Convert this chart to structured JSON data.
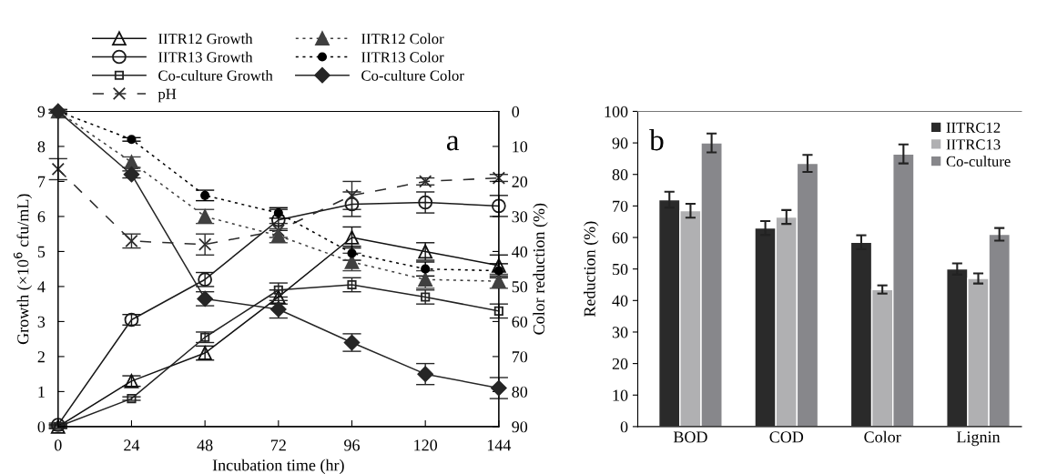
{
  "chart_data": [
    {
      "type": "line",
      "xlabel": "Incubation time (hr)",
      "ylabel": "Growth (×10$^{6}$ cfu/mL)",
      "y2label": "Color reduction (%)",
      "annotations": [
        "a"
      ],
      "x": [
        0,
        24,
        48,
        72,
        96,
        120,
        144
      ],
      "xlim": [
        0,
        144
      ],
      "xticks": [
        0,
        24,
        48,
        72,
        96,
        120,
        144
      ],
      "ylim": [
        0,
        9
      ],
      "yticks": [
        0,
        1,
        2,
        3,
        4,
        5,
        6,
        7,
        8,
        9
      ],
      "y2lim": [
        90,
        0
      ],
      "y2ticks": [
        0,
        10,
        20,
        30,
        40,
        50,
        60,
        70,
        80,
        90
      ],
      "legend": "top",
      "grid": false,
      "series": [
        {
          "name": "IITR12 Growth",
          "color": "#111111",
          "marker": "triangle",
          "line_style": "solid",
          "values": [
            0,
            1.3,
            2.1,
            3.7,
            5.4,
            5.0,
            4.6
          ],
          "errors": [
            0.05,
            0.15,
            0.2,
            0.2,
            0.3,
            0.25,
            0.3
          ]
        },
        {
          "name": "IITR13 Growth",
          "color": "#1a1a1a",
          "marker": "circle",
          "line_style": "solid",
          "values": [
            0.05,
            3.05,
            4.2,
            5.9,
            6.35,
            6.4,
            6.3
          ],
          "errors": [
            0.05,
            0.15,
            0.2,
            0.3,
            0.35,
            0.3,
            0.3
          ]
        },
        {
          "name": "Co-culture Growth",
          "color": "#222222",
          "marker": "square",
          "line_style": "solid",
          "values": [
            0,
            0.8,
            2.55,
            3.9,
            4.05,
            3.7,
            3.3
          ],
          "errors": [
            0.05,
            0.05,
            0.15,
            0.2,
            0.2,
            0.2,
            0.2
          ]
        },
        {
          "name": "pH",
          "color": "#2b2b2b",
          "marker": "cross",
          "line_style": "dashed",
          "values": [
            7.35,
            5.3,
            5.2,
            5.6,
            6.6,
            7.0,
            7.1
          ],
          "errors": [
            0.3,
            0.2,
            0.3,
            0.2,
            0.4,
            0.1,
            0.1
          ]
        },
        {
          "name": "IITR12 Color",
          "color": "#404040",
          "marker": "triangle",
          "line_style": "dotted",
          "axis": "y2",
          "values": [
            0,
            14.5,
            30,
            35.5,
            43,
            48,
            48.5
          ],
          "errors": [
            0.5,
            1.5,
            2,
            2,
            2.5,
            2.5,
            2
          ]
        },
        {
          "name": "IITR13 Color",
          "color": "#000000",
          "marker": "circle",
          "line_style": "dotted",
          "axis": "y2",
          "values": [
            0,
            8,
            24,
            29,
            40.5,
            45,
            45.5
          ],
          "errors": [
            0.5,
            0.5,
            1.5,
            1.5,
            2,
            2,
            2
          ]
        },
        {
          "name": "Co-culture Color",
          "color": "#262626",
          "marker": "diamond",
          "line_style": "solid",
          "axis": "y2",
          "values": [
            0,
            18,
            53.5,
            56.5,
            66,
            75,
            79
          ],
          "errors": [
            0.5,
            1,
            2,
            2.5,
            2.5,
            3,
            3
          ]
        }
      ]
    },
    {
      "type": "bar",
      "ylabel": "Reduction (%)",
      "annotations": [
        "b"
      ],
      "categories": [
        "BOD",
        "COD",
        "Color",
        "Lignin"
      ],
      "ylim": [
        0,
        100
      ],
      "yticks": [
        0,
        10,
        20,
        30,
        40,
        50,
        60,
        70,
        80,
        90,
        100
      ],
      "legend": "top right",
      "grid": false,
      "series": [
        {
          "name": "IITRC12",
          "color": "#2a2a2a",
          "values": [
            72,
            63,
            58.5,
            50
          ],
          "errors": [
            2.5,
            2.2,
            2.2,
            1.8
          ]
        },
        {
          "name": "IITRC13",
          "color": "#b0b0b2",
          "values": [
            68.5,
            66.5,
            43.5,
            47
          ],
          "errors": [
            2.2,
            2.2,
            1.3,
            1.6
          ]
        },
        {
          "name": "Co-culture",
          "color": "#87878b",
          "values": [
            90,
            83.5,
            86.5,
            61
          ],
          "errors": [
            3,
            2.7,
            3,
            2
          ]
        }
      ]
    }
  ]
}
